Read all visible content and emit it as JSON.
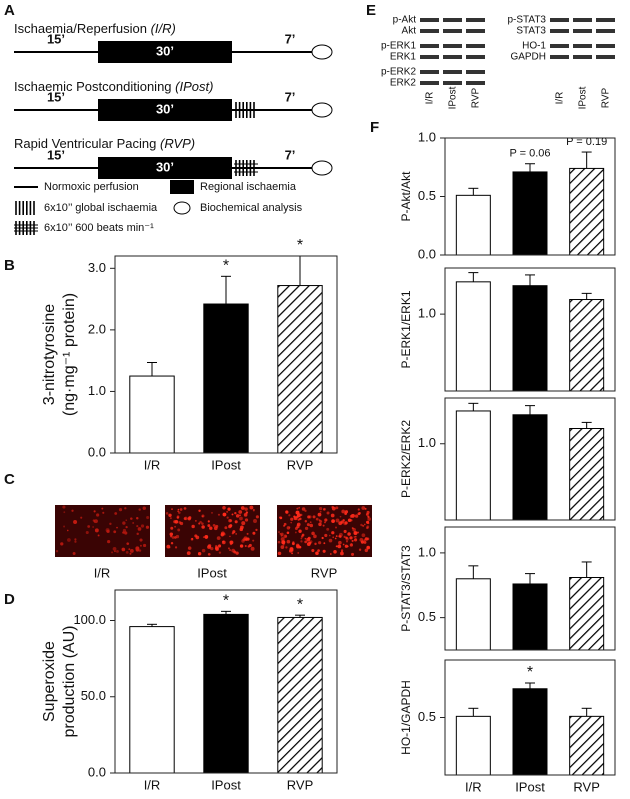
{
  "panel_labels": [
    "A",
    "B",
    "C",
    "D",
    "E",
    "F"
  ],
  "protocol": {
    "rows": [
      {
        "title": "Ischaemia/Reperfusion ",
        "abbr": "(I/R)",
        "times": [
          "15’",
          "30’",
          "7’"
        ]
      },
      {
        "title": "Ischaemic Postconditioning ",
        "abbr": "(IPost)",
        "times": [
          "15’",
          "30’",
          "7’"
        ]
      },
      {
        "title": "Rapid Ventricular Pacing ",
        "abbr": "(RVP)",
        "times": [
          "15’",
          "30’",
          "7’"
        ]
      }
    ],
    "legend": [
      "Normoxic perfusion",
      "Regional ischaemia",
      "6x10’’ global ischaemia",
      "Biochemical analysis",
      "6x10’’ 600 beats min⁻¹"
    ]
  },
  "images": {
    "labels": [
      "I/R",
      "IPost",
      "RVP"
    ]
  },
  "blots": {
    "left_labels": [
      "p-Akt",
      "Akt",
      "p-ERK1",
      "ERK1",
      "p-ERK2",
      "ERK2"
    ],
    "right_labels": [
      "p-STAT3",
      "STAT3",
      "HO-1",
      "GAPDH"
    ],
    "lanes": [
      "I/R",
      "IPost",
      "RVP"
    ]
  },
  "chart_data": [
    {
      "type": "bar",
      "ylabel": [
        "3-nitrotyrosine",
        "(ng·mg⁻¹ protein)"
      ],
      "categories": [
        "I/R",
        "IPost",
        "RVP"
      ],
      "values": [
        1.25,
        2.42,
        2.72
      ],
      "errors": [
        0.22,
        0.45,
        0.48
      ],
      "colors": [
        "#ffffff",
        "#000000",
        "#ffffff"
      ],
      "hatch": [
        false,
        false,
        true
      ],
      "annotations": [
        null,
        "*",
        "*"
      ],
      "ylim": [
        0,
        3.2
      ],
      "yticks": [
        {
          "value": 0,
          "label": "0.0"
        },
        {
          "value": 1,
          "label": "1.0"
        },
        {
          "value": 2,
          "label": "2.0"
        },
        {
          "value": 3,
          "label": "3.0"
        }
      ]
    },
    {
      "type": "bar",
      "ylabel": [
        "Superoxide",
        "production (AU)"
      ],
      "categories": [
        "I/R",
        "IPost",
        "RVP"
      ],
      "values": [
        96,
        104,
        102
      ],
      "errors": [
        1.5,
        2,
        1.5
      ],
      "colors": [
        "#ffffff",
        "#000000",
        "#ffffff"
      ],
      "hatch": [
        false,
        false,
        true
      ],
      "annotations": [
        null,
        "*",
        "*"
      ],
      "ylim": [
        0,
        120
      ],
      "yticks": [
        {
          "value": 0,
          "label": "0.0"
        },
        {
          "value": 50,
          "label": "50.0"
        },
        {
          "value": 100,
          "label": "100.0"
        }
      ]
    },
    {
      "type": "bar",
      "ylabel": [
        "P-Akt/Akt"
      ],
      "categories": [
        null,
        null,
        null
      ],
      "values": [
        0.51,
        0.71,
        0.74
      ],
      "errors": [
        0.06,
        0.07,
        0.14
      ],
      "colors": [
        "#ffffff",
        "#000000",
        "#ffffff"
      ],
      "hatch": [
        false,
        false,
        true
      ],
      "annotations": [
        null,
        "P = 0.06",
        "P = 0.19"
      ],
      "ylim": [
        0,
        1.0
      ],
      "yticks": [
        {
          "value": 0,
          "label": "0.0"
        },
        0.5,
        {
          "value": 1,
          "label": "1.0"
        }
      ]
    },
    {
      "type": "bar",
      "ylabel": [
        "P-ERK1/ERK1"
      ],
      "categories": [
        null,
        null,
        null
      ],
      "values": [
        1.42,
        1.37,
        1.19
      ],
      "errors": [
        0.12,
        0.14,
        0.08
      ],
      "colors": [
        "#ffffff",
        "#000000",
        "#ffffff"
      ],
      "hatch": [
        false,
        false,
        true
      ],
      "ylim": [
        0,
        1.6
      ],
      "yticks": [
        {
          "value": 1,
          "label": "1.0"
        }
      ]
    },
    {
      "type": "bar",
      "ylabel": [
        "P-ERK2/ERK2"
      ],
      "categories": [
        null,
        null,
        null
      ],
      "values": [
        1.43,
        1.38,
        1.2
      ],
      "errors": [
        0.1,
        0.12,
        0.08
      ],
      "colors": [
        "#ffffff",
        "#000000",
        "#ffffff"
      ],
      "hatch": [
        false,
        false,
        true
      ],
      "ylim": [
        0,
        1.6
      ],
      "yticks": [
        {
          "value": 1,
          "label": "1.0"
        }
      ]
    },
    {
      "type": "bar",
      "ylabel": [
        "P-STAT3/STAT3"
      ],
      "categories": [
        null,
        null,
        null
      ],
      "values": [
        0.8,
        0.76,
        0.81
      ],
      "errors": [
        0.1,
        0.08,
        0.12
      ],
      "colors": [
        "#ffffff",
        "#000000",
        "#ffffff"
      ],
      "hatch": [
        false,
        false,
        true
      ],
      "ylim": [
        0.25,
        1.2
      ],
      "yticks": [
        0.5,
        {
          "value": 1,
          "label": "1.0"
        }
      ]
    },
    {
      "type": "bar",
      "ylabel": [
        "HO-1/GAPDH"
      ],
      "categories": [
        "I/R",
        "IPost",
        "RVP"
      ],
      "values": [
        0.51,
        0.75,
        0.51
      ],
      "errors": [
        0.07,
        0.05,
        0.07
      ],
      "colors": [
        "#ffffff",
        "#000000",
        "#ffffff"
      ],
      "hatch": [
        false,
        false,
        true
      ],
      "annotations": [
        null,
        "*",
        null
      ],
      "ylim": [
        0,
        1.0
      ],
      "yticks": [
        0.5
      ]
    }
  ]
}
